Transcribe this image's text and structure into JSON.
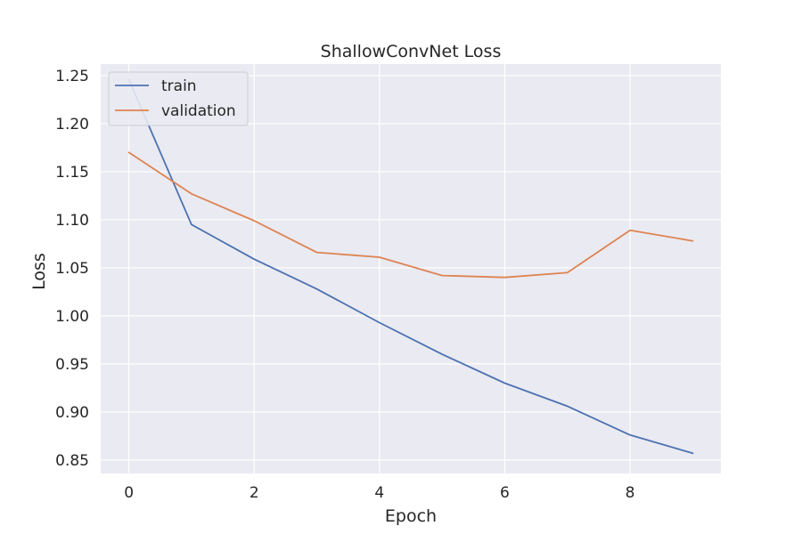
{
  "chart_data": {
    "type": "line",
    "title": "ShallowConvNet Loss",
    "xlabel": "Epoch",
    "ylabel": "Loss",
    "x": [
      0,
      1,
      2,
      3,
      4,
      5,
      6,
      7,
      8,
      9
    ],
    "xlim": [
      -0.45,
      9.45
    ],
    "ylim": [
      0.836,
      1.262
    ],
    "xticks": [
      0,
      2,
      4,
      6,
      8
    ],
    "yticks": [
      0.85,
      0.9,
      0.95,
      1.0,
      1.05,
      1.1,
      1.15,
      1.2,
      1.25
    ],
    "ytick_labels": [
      "0.85",
      "0.90",
      "0.95",
      "1.00",
      "1.05",
      "1.10",
      "1.15",
      "1.20",
      "1.25"
    ],
    "grid": true,
    "legend_position": "top-left",
    "series": [
      {
        "name": "train",
        "color": "#4C72B0",
        "values": [
          1.246,
          1.095,
          1.059,
          1.028,
          0.993,
          0.96,
          0.93,
          0.906,
          0.876,
          0.857
        ]
      },
      {
        "name": "validation",
        "color": "#DD8452",
        "values": [
          1.17,
          1.127,
          1.099,
          1.066,
          1.061,
          1.042,
          1.04,
          1.045,
          1.089,
          1.078
        ]
      }
    ]
  }
}
